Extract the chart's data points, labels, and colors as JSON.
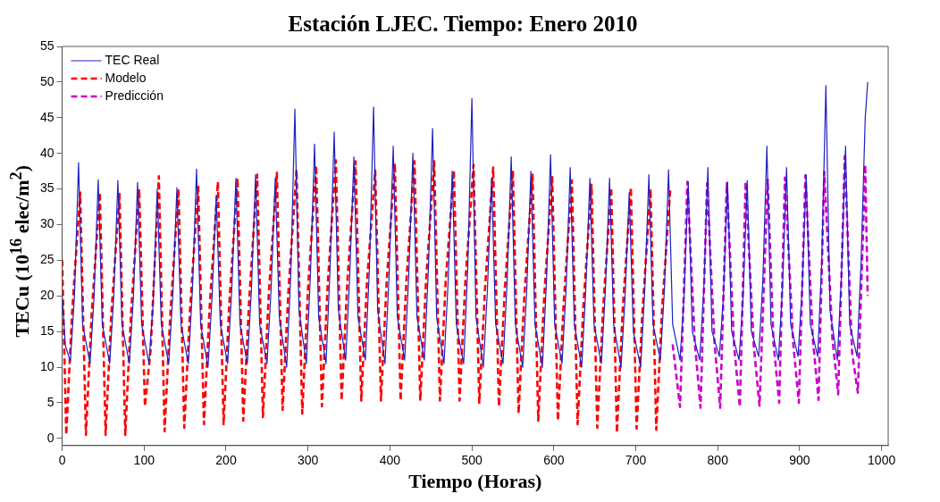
{
  "chart_data": {
    "type": "line",
    "title": "Estación LJEC. Tiempo: Enero 2010",
    "xlabel": "Tiempo (Horas)",
    "ylabel": "TECu (10$^{16}$ elec/m$^{2}$)",
    "xlim": [
      0,
      1008
    ],
    "xticks": [
      0,
      100,
      200,
      300,
      400,
      500,
      600,
      700,
      800,
      900,
      1000
    ],
    "ylim": [
      -1,
      55
    ],
    "yticks": [
      0,
      5,
      10,
      15,
      20,
      25,
      30,
      35,
      40,
      45,
      50,
      55
    ],
    "grid": false,
    "legend": "top left",
    "marker": "none",
    "series": [
      {
        "name": "TEC Real",
        "color": "#2020c0",
        "line_style": "solid",
        "x": [
          0,
          4,
          10,
          15,
          20,
          25,
          34,
          39,
          44,
          49,
          58,
          63,
          68,
          73,
          82,
          87,
          92,
          97,
          106,
          111,
          116,
          121,
          130,
          135,
          140,
          145,
          154,
          159,
          164,
          169,
          178,
          183,
          188,
          193,
          202,
          207,
          212,
          217,
          226,
          231,
          236,
          241,
          250,
          255,
          260,
          265,
          274,
          279,
          284,
          289,
          298,
          303,
          308,
          313,
          322,
          327,
          332,
          337,
          346,
          351,
          356,
          361,
          370,
          375,
          380,
          385,
          394,
          399,
          404,
          409,
          418,
          423,
          428,
          433,
          442,
          447,
          452,
          457,
          466,
          471,
          476,
          481,
          490,
          495,
          500,
          505,
          514,
          519,
          524,
          529,
          538,
          543,
          548,
          553,
          562,
          567,
          572,
          577,
          586,
          591,
          596,
          601,
          610,
          615,
          620,
          625,
          634,
          639,
          644,
          649,
          658,
          663,
          668,
          673,
          682,
          687,
          692,
          697,
          706,
          711,
          716,
          721,
          730,
          735,
          740,
          745,
          754,
          759,
          764,
          769,
          778,
          783,
          788,
          793,
          802,
          807,
          812,
          817,
          826,
          831,
          836,
          841,
          850,
          855,
          860,
          865,
          874,
          879,
          884,
          889,
          898,
          903,
          908,
          913,
          922,
          927,
          932,
          937,
          946,
          951,
          956,
          961,
          970,
          975,
          980,
          983
        ],
        "values": [
          20,
          13,
          10.8,
          20,
          38.7,
          16,
          10.5,
          20,
          36.3,
          16,
          10.5,
          20,
          36.2,
          16,
          10.5,
          20,
          35.9,
          16,
          10.5,
          19,
          35,
          16,
          10.5,
          20,
          35.2,
          16,
          10.5,
          21,
          37.8,
          16,
          10,
          20,
          34,
          16,
          10.5,
          21,
          36.5,
          16,
          10.5,
          21,
          37,
          16,
          10.5,
          21,
          36.5,
          17,
          10,
          23,
          46.2,
          18,
          10.5,
          23,
          41.3,
          17,
          10.5,
          24,
          43,
          18,
          11,
          23,
          39.5,
          17,
          11,
          24,
          46.5,
          18,
          10.5,
          23,
          41,
          17,
          11,
          23,
          40,
          17,
          11,
          24,
          43.5,
          17,
          10.5,
          22,
          37.5,
          16,
          10.5,
          24,
          47.7,
          17,
          10,
          21,
          36.5,
          16,
          10.5,
          22,
          39.5,
          16,
          10,
          21,
          37.5,
          16,
          10,
          22,
          39.8,
          16,
          10.5,
          21,
          38,
          16,
          10,
          21,
          36.5,
          16,
          10.5,
          21,
          36.5,
          16,
          10,
          20,
          34.5,
          15,
          10,
          21,
          37,
          16,
          11,
          21,
          37.7,
          16,
          11,
          20,
          36,
          15,
          11,
          21,
          38,
          15,
          11.5,
          20,
          36,
          15,
          11,
          20,
          36.2,
          15,
          11.5,
          22,
          41,
          16,
          11,
          21,
          38,
          16,
          11.5,
          21,
          37,
          16,
          11.5,
          25,
          49.5,
          18,
          11,
          23,
          41,
          16,
          11.5,
          25,
          45,
          50
        ]
      },
      {
        "name": "Modelo",
        "color": "#ff0000",
        "line_style": "dashed",
        "x": [
          0,
          5,
          12,
          22,
          29,
          36,
          46,
          53,
          60,
          70,
          77,
          84,
          94,
          101,
          108,
          118,
          125,
          132,
          142,
          149,
          156,
          166,
          173,
          180,
          190,
          197,
          204,
          214,
          221,
          228,
          238,
          245,
          252,
          262,
          269,
          276,
          286,
          293,
          300,
          310,
          317,
          324,
          334,
          341,
          348,
          358,
          365,
          372,
          382,
          389,
          396,
          406,
          413,
          420,
          430,
          437,
          444,
          454,
          461,
          468,
          478,
          485,
          492,
          502,
          509,
          516,
          526,
          533,
          540,
          550,
          557,
          564,
          574,
          581,
          588,
          598,
          605,
          612,
          622,
          629,
          636,
          646,
          653,
          660,
          670,
          677,
          684,
          694,
          701,
          708,
          718,
          725,
          732,
          742
        ],
        "values": [
          25,
          0.5,
          17.5,
          34.5,
          0.5,
          17.5,
          34.5,
          0.5,
          17.5,
          34.3,
          0.5,
          17.5,
          35,
          4.5,
          12.5,
          36.8,
          1,
          17.5,
          35,
          1.5,
          18,
          35.5,
          2,
          18.5,
          36,
          2,
          19,
          36.5,
          2.5,
          19,
          37,
          3,
          20,
          37.3,
          4,
          20.5,
          37.7,
          3.5,
          21,
          38.3,
          4.5,
          21.5,
          39,
          5.3,
          22,
          38.9,
          5.3,
          22,
          37.6,
          5.3,
          22,
          38.6,
          5.3,
          22,
          38.9,
          5.3,
          22,
          38.9,
          5.3,
          22,
          37.6,
          5.3,
          22,
          38.4,
          5,
          21,
          38,
          4.5,
          20.5,
          37.6,
          3.5,
          20,
          37,
          2.5,
          19.5,
          36.8,
          2.5,
          19,
          36.2,
          2,
          18.5,
          35.6,
          1.5,
          18,
          35.2,
          0.8,
          18,
          35.2,
          1.4,
          17.5,
          35,
          1.2,
          18,
          34.8
        ]
      },
      {
        "name": "Predicción",
        "color": "#cc00cc",
        "line_style": "dashed",
        "x": [
          745,
          754,
          763,
          772,
          779,
          787,
          796,
          803,
          811,
          820,
          827,
          834,
          844,
          851,
          861,
          868,
          875,
          882,
          892,
          899,
          907,
          916,
          923,
          930,
          940,
          947,
          955,
          964,
          971,
          980,
          983
        ],
        "values": [
          13.2,
          4.4,
          36,
          13.5,
          4.3,
          35.8,
          13.5,
          4.3,
          35.8,
          13,
          4.4,
          36,
          13,
          4.6,
          36.3,
          13.5,
          5,
          36.6,
          13.5,
          5,
          36.9,
          14,
          5.4,
          37.4,
          14,
          6.2,
          39.6,
          12,
          6.4,
          38.4,
          20
        ]
      }
    ]
  }
}
